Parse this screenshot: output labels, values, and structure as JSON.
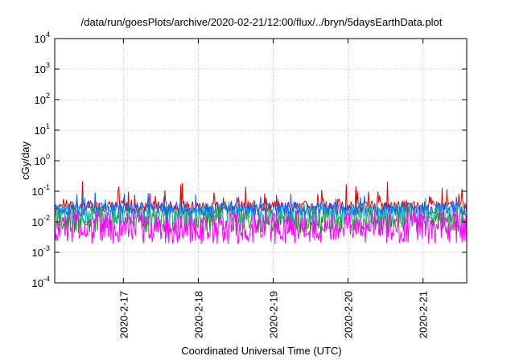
{
  "chart_data": {
    "type": "line",
    "title": "/data/run/goesPlots/archive/2020-02-21/12:00/flux/../bryn/5daysEarthData.plot",
    "xlabel": "Coordinated Universal Time (UTC)",
    "ylabel": "cGy/day",
    "y_scale": "log",
    "ylim": [
      0.0001,
      10000
    ],
    "xlim": [
      "2020-02-16 02:00",
      "2020-02-21 14:00"
    ],
    "grid": true,
    "y_ticks": [
      {
        "base": "10",
        "exp": "-4",
        "value": 0.0001
      },
      {
        "base": "10",
        "exp": "-3",
        "value": 0.001
      },
      {
        "base": "10",
        "exp": "-2",
        "value": 0.01
      },
      {
        "base": "10",
        "exp": "-1",
        "value": 0.1
      },
      {
        "base": "10",
        "exp": "0",
        "value": 1
      },
      {
        "base": "10",
        "exp": "1",
        "value": 10
      },
      {
        "base": "10",
        "exp": "2",
        "value": 100
      },
      {
        "base": "10",
        "exp": "3",
        "value": 1000
      },
      {
        "base": "10",
        "exp": "4",
        "value": 10000
      }
    ],
    "x_ticks": [
      "2020-2-17",
      "2020-2-18",
      "2020-2-19",
      "2020-2-20",
      "2020-2-21"
    ],
    "series": [
      {
        "color": "#e00000",
        "base": 0.032,
        "spread": 0.18,
        "spike": 0.75
      },
      {
        "color": "#00a000",
        "base": 0.012,
        "spread": 0.45,
        "spike": 0.2
      },
      {
        "color": "#20c0c0",
        "base": 0.018,
        "spread": 0.35,
        "spike": 0.2
      },
      {
        "color": "#1060ff",
        "base": 0.026,
        "spread": 0.22,
        "spike": 0.5
      },
      {
        "color": "#ff00ff",
        "base": 0.0065,
        "spread": 0.55,
        "spike": 0.35
      }
    ]
  }
}
